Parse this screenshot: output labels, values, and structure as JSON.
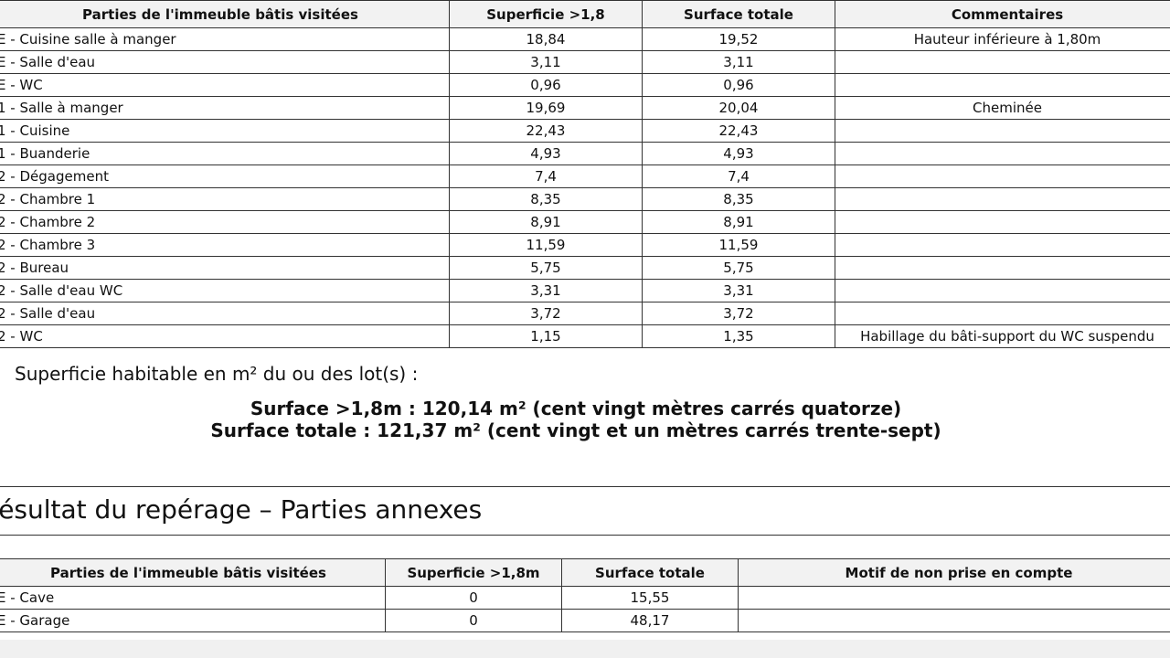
{
  "table": {
    "headers": [
      "Parties de l'immeuble bâtis visitées",
      "Superficie >1,8",
      "Surface totale",
      "Commentaires"
    ],
    "rows": [
      [
        "E - Cuisine salle à manger",
        "18,84",
        "19,52",
        "Hauteur inférieure à 1,80m"
      ],
      [
        "E - Salle d'eau",
        "3,11",
        "3,11",
        ""
      ],
      [
        "E - WC",
        "0,96",
        "0,96",
        ""
      ],
      [
        "1 - Salle à manger",
        "19,69",
        "20,04",
        "Cheminée"
      ],
      [
        "1 - Cuisine",
        "22,43",
        "22,43",
        ""
      ],
      [
        "1 - Buanderie",
        "4,93",
        "4,93",
        ""
      ],
      [
        "2 - Dégagement",
        "7,4",
        "7,4",
        ""
      ],
      [
        "2 - Chambre 1",
        "8,35",
        "8,35",
        ""
      ],
      [
        "2 - Chambre 2",
        "8,91",
        "8,91",
        ""
      ],
      [
        "2 - Chambre 3",
        "11,59",
        "11,59",
        ""
      ],
      [
        "2 - Bureau",
        "5,75",
        "5,75",
        ""
      ],
      [
        "2 - Salle d'eau WC",
        "3,31",
        "3,31",
        ""
      ],
      [
        "2 - Salle d'eau",
        "3,72",
        "3,72",
        ""
      ],
      [
        "2 - WC",
        "1,15",
        "1,35",
        "Habillage du bâti-support du WC suspendu"
      ]
    ]
  },
  "summary": {
    "label": "Superficie habitable en m² du ou des lot(s) :",
    "line1": "Surface >1,8m : 120,14 m² (cent vingt mètres carrés quatorze)",
    "line2": "Surface totale : 121,37 m² (cent vingt et un mètres carrés trente-sept)"
  },
  "section": {
    "title": "Résultat du repérage – Parties annexes"
  },
  "annex_table": {
    "headers": [
      "Parties de l'immeuble bâtis visitées",
      "Superficie >1,8m",
      "Surface totale",
      "Motif de non prise en compte"
    ],
    "rows": [
      [
        "E - Cave",
        "0",
        "15,55",
        ""
      ],
      [
        "E - Garage",
        "0",
        "48,17",
        ""
      ]
    ]
  }
}
